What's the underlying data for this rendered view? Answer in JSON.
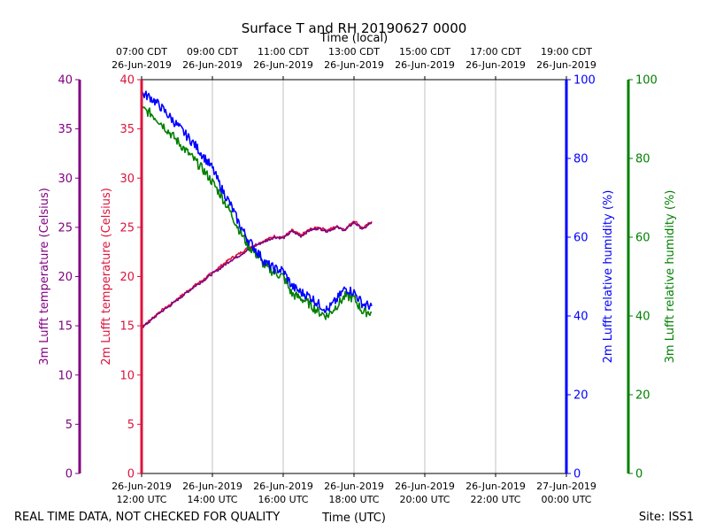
{
  "chart_data": {
    "type": "line",
    "title": "Surface T and RH 20190627 0000",
    "x_bottom_label": "Time (UTC)",
    "x_top_label": "Time (local)",
    "x_range_hours_utc": [
      12,
      24
    ],
    "x_ticks": [
      {
        "hour": 12,
        "utc_date": "26-Jun-2019",
        "utc_time": "12:00 UTC",
        "local_time": "07:00 CDT",
        "local_date": "26-Jun-2019"
      },
      {
        "hour": 14,
        "utc_date": "26-Jun-2019",
        "utc_time": "14:00 UTC",
        "local_time": "09:00 CDT",
        "local_date": "26-Jun-2019"
      },
      {
        "hour": 16,
        "utc_date": "26-Jun-2019",
        "utc_time": "16:00 UTC",
        "local_time": "11:00 CDT",
        "local_date": "26-Jun-2019"
      },
      {
        "hour": 18,
        "utc_date": "26-Jun-2019",
        "utc_time": "18:00 UTC",
        "local_time": "13:00 CDT",
        "local_date": "26-Jun-2019"
      },
      {
        "hour": 20,
        "utc_date": "26-Jun-2019",
        "utc_time": "20:00 UTC",
        "local_time": "15:00 CDT",
        "local_date": "26-Jun-2019"
      },
      {
        "hour": 22,
        "utc_date": "26-Jun-2019",
        "utc_time": "22:00 UTC",
        "local_time": "17:00 CDT",
        "local_date": "26-Jun-2019"
      },
      {
        "hour": 24,
        "utc_date": "27-Jun-2019",
        "utc_time": "00:00 UTC",
        "local_time": "19:00 CDT",
        "local_date": "26-Jun-2019"
      }
    ],
    "grid": "vertical",
    "axes": [
      {
        "id": "t3",
        "label": "3m Lufft temperature (Celsius)",
        "range": [
          0,
          40
        ],
        "ticks": [
          0,
          5,
          10,
          15,
          20,
          25,
          30,
          35,
          40
        ],
        "color": "#800080"
      },
      {
        "id": "t2",
        "label": "2m Lufft temperature (Celsius)",
        "range": [
          0,
          40
        ],
        "ticks": [
          0,
          5,
          10,
          15,
          20,
          25,
          30,
          35,
          40
        ],
        "color": "#dc143c"
      },
      {
        "id": "rh2",
        "label": "2m Lufft relative humidity (%)",
        "range": [
          0,
          100
        ],
        "ticks": [
          0,
          20,
          40,
          60,
          80,
          100
        ],
        "color": "#0000ff"
      },
      {
        "id": "rh3",
        "label": "3m Lufft relative humidity (%)",
        "range": [
          0,
          100
        ],
        "ticks": [
          0,
          20,
          40,
          60,
          80,
          100
        ],
        "color": "#008000"
      }
    ],
    "series": [
      {
        "name": "2m temperature",
        "axis": "t2",
        "color": "#dc143c",
        "x": [
          12.0,
          12.25,
          12.5,
          12.75,
          13.0,
          13.25,
          13.5,
          13.75,
          14.0,
          14.25,
          14.5,
          14.75,
          15.0,
          15.25,
          15.5,
          15.75,
          16.0,
          16.25,
          16.5,
          16.75,
          17.0,
          17.25,
          17.5,
          17.75,
          18.0,
          18.25,
          18.5
        ],
        "y": [
          14.9,
          15.6,
          16.4,
          17.0,
          17.7,
          18.4,
          19.1,
          19.7,
          20.4,
          21.1,
          21.8,
          22.3,
          22.9,
          23.3,
          23.7,
          24.1,
          24.0,
          24.7,
          24.2,
          24.8,
          25.0,
          24.7,
          25.1,
          24.8,
          25.7,
          24.9,
          25.6
        ]
      },
      {
        "name": "3m temperature",
        "axis": "t3",
        "color": "#800080",
        "x": [
          12.0,
          12.25,
          12.5,
          12.75,
          13.0,
          13.25,
          13.5,
          13.75,
          14.0,
          14.25,
          14.5,
          14.75,
          15.0,
          15.25,
          15.5,
          15.75,
          16.0,
          16.25,
          16.5,
          16.75,
          17.0,
          17.25,
          17.5,
          17.75,
          18.0,
          18.25,
          18.5
        ],
        "y": [
          14.8,
          15.5,
          16.3,
          16.9,
          17.6,
          18.3,
          19.0,
          19.6,
          20.3,
          20.9,
          21.6,
          22.1,
          22.7,
          23.2,
          23.6,
          24.0,
          23.9,
          24.6,
          24.1,
          24.7,
          24.9,
          24.6,
          25.0,
          24.7,
          25.5,
          24.8,
          25.5
        ]
      },
      {
        "name": "2m relative humidity",
        "axis": "rh2",
        "color": "#0000ff",
        "x": [
          12.0,
          12.25,
          12.5,
          12.75,
          13.0,
          13.25,
          13.5,
          13.75,
          14.0,
          14.25,
          14.5,
          14.75,
          15.0,
          15.25,
          15.5,
          15.75,
          16.0,
          16.25,
          16.5,
          16.75,
          17.0,
          17.25,
          17.5,
          17.75,
          18.0,
          18.25,
          18.5
        ],
        "y": [
          96.5,
          95.5,
          93.5,
          91.0,
          88.5,
          86.0,
          83.5,
          80.5,
          77.5,
          72.5,
          68.5,
          63.5,
          59.5,
          56.5,
          53.5,
          52.0,
          51.5,
          47.5,
          46.0,
          45.0,
          43.0,
          41.5,
          44.0,
          47.0,
          46.0,
          43.0,
          42.5
        ]
      },
      {
        "name": "3m relative humidity",
        "axis": "rh3",
        "color": "#008000",
        "x": [
          12.0,
          12.25,
          12.5,
          12.75,
          13.0,
          13.25,
          13.5,
          13.75,
          14.0,
          14.25,
          14.5,
          14.75,
          15.0,
          15.25,
          15.5,
          15.75,
          16.0,
          16.25,
          16.5,
          16.75,
          17.0,
          17.25,
          17.5,
          17.75,
          18.0,
          18.25,
          18.5
        ],
        "y": [
          92.5,
          91.5,
          89.5,
          87.0,
          84.5,
          82.0,
          79.5,
          77.0,
          74.0,
          70.5,
          66.5,
          62.0,
          58.0,
          55.5,
          52.5,
          51.0,
          50.0,
          45.5,
          44.5,
          43.0,
          41.0,
          40.0,
          42.5,
          45.0,
          44.5,
          41.0,
          41.0
        ]
      }
    ],
    "footer_left": "REAL TIME DATA, NOT CHECKED FOR QUALITY",
    "footer_right": "Site: ISS1"
  }
}
